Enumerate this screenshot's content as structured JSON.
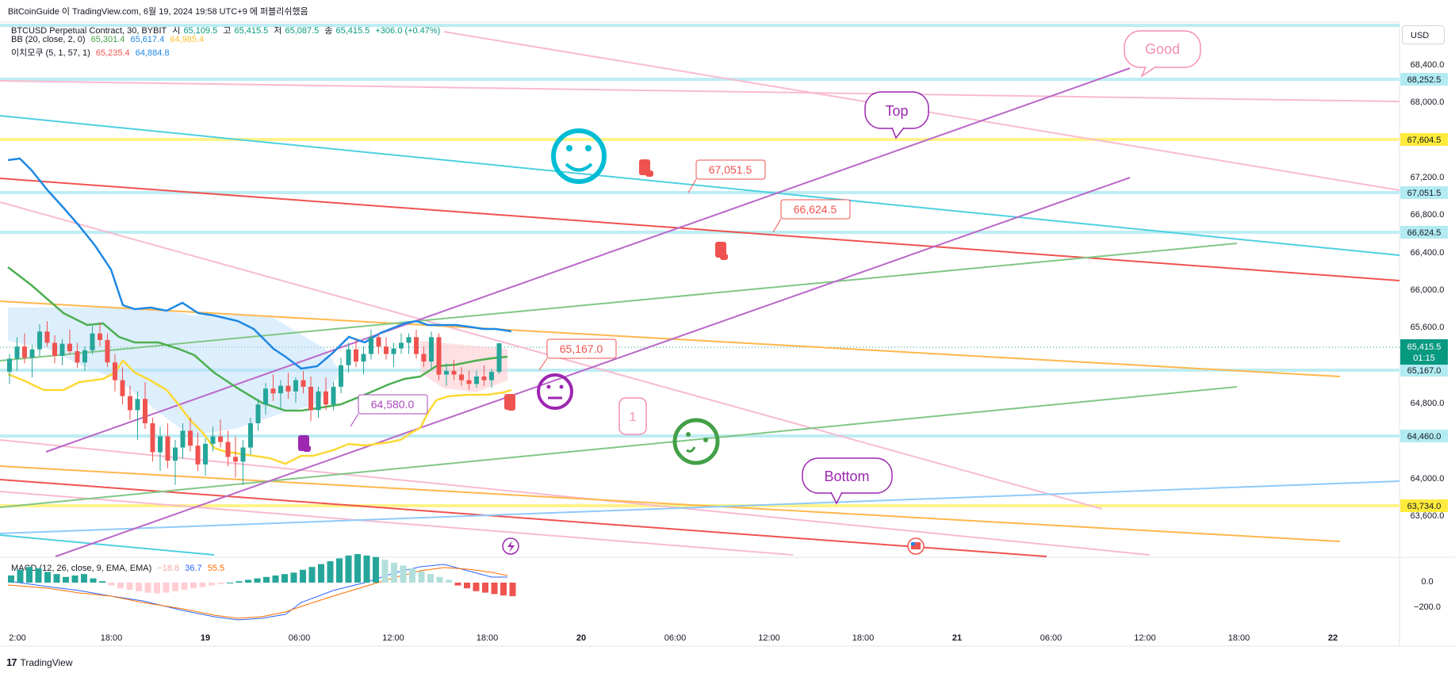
{
  "header": {
    "publisher_line": "BitCoinGuide 이 TradingView.com, 6월 19, 2024 19:58 UTC+9 에 퍼블리쉬했음"
  },
  "legend": {
    "symbol": "BTCUSD Perpetual Contract, 30, BYBIT",
    "ohlc": [
      {
        "label": "시",
        "value": "65,109.5"
      },
      {
        "label": "고",
        "value": "65,415.5"
      },
      {
        "label": "저",
        "value": "65,087.5"
      },
      {
        "label": "종",
        "value": "65,415.5"
      }
    ],
    "change": "+306.0 (+0.47%)",
    "bb": {
      "label": "BB (20, close, 2, 0)",
      "basis": "65,301.4",
      "upper": "65,617.4",
      "lower": "64,985.4"
    },
    "ichimoku": {
      "label": "이치모쿠 (5, 1, 57, 1)",
      "v1": "65,235.4",
      "v2": "64,884.8"
    },
    "macd": {
      "label": "MACD (12, 26, close, 9, EMA, EMA)",
      "hist": "−18.8",
      "macd": "36.7",
      "signal": "55.5"
    }
  },
  "currency_button": "USD",
  "price_axis": {
    "ticks": [
      "68,400.0",
      "68,000.0",
      "67,200.0",
      "66,800.0",
      "66,400.0",
      "66,000.0",
      "65,600.0",
      "64,800.0",
      "64,000.0",
      "63,600.0"
    ],
    "tags": [
      {
        "text": "68,252.5",
        "color": "#b2ebf2"
      },
      {
        "text": "67,604.5",
        "color": "#ffeb3b"
      },
      {
        "text": "67,051.5",
        "color": "#b2ebf2"
      },
      {
        "text": "66,624.5",
        "color": "#b2ebf2"
      },
      {
        "text": "65,167.0",
        "color": "#b2ebf2"
      },
      {
        "text": "64,460.0",
        "color": "#b2ebf2"
      },
      {
        "text": "63,734.0",
        "color": "#ffeb3b"
      }
    ],
    "current": {
      "price": "65,415.5",
      "countdown": "01:15",
      "color": "#089981"
    }
  },
  "macd_axis": {
    "ticks": [
      "0.0",
      "−200.0"
    ]
  },
  "time_axis": {
    "labels": [
      "2:00",
      "18:00",
      "19",
      "06:00",
      "12:00",
      "18:00",
      "20",
      "06:00",
      "12:00",
      "18:00",
      "21",
      "06:00",
      "12:00",
      "18:00",
      "22"
    ]
  },
  "annotations": {
    "price_labels": [
      "67,051.5",
      "66,624.5",
      "65,167.0",
      "64,580.0"
    ],
    "callouts": [
      "Good",
      "Top",
      "Bottom",
      "1"
    ]
  },
  "footer": {
    "logo": "17",
    "brand": "TradingView"
  },
  "chart_data": {
    "type": "candlestick",
    "symbol": "BTCUSD Perpetual Contract",
    "interval": "30",
    "ylim": [
      63400,
      68800
    ],
    "candles": [
      [
        65109,
        65300,
        64980,
        65250
      ],
      [
        65250,
        65480,
        65120,
        65380
      ],
      [
        65380,
        65520,
        65200,
        65260
      ],
      [
        65260,
        65400,
        65050,
        65350
      ],
      [
        65350,
        65620,
        65280,
        65540
      ],
      [
        65540,
        65650,
        65380,
        65420
      ],
      [
        65420,
        65500,
        65200,
        65280
      ],
      [
        65280,
        65460,
        65180,
        65410
      ],
      [
        65410,
        65560,
        65300,
        65330
      ],
      [
        65330,
        65420,
        65150,
        65210
      ],
      [
        65210,
        65380,
        65120,
        65340
      ],
      [
        65340,
        65600,
        65300,
        65520
      ],
      [
        65520,
        65640,
        65380,
        65450
      ],
      [
        65450,
        65520,
        65160,
        65210
      ],
      [
        65210,
        65300,
        64900,
        65020
      ],
      [
        65020,
        65160,
        64760,
        64850
      ],
      [
        64850,
        64960,
        64600,
        64700
      ],
      [
        64700,
        64900,
        64380,
        64820
      ],
      [
        64820,
        65000,
        64500,
        64560
      ],
      [
        64560,
        64620,
        64150,
        64250
      ],
      [
        64250,
        64520,
        64050,
        64420
      ],
      [
        64420,
        64560,
        64080,
        64160
      ],
      [
        64160,
        64380,
        63900,
        64300
      ],
      [
        64300,
        64560,
        64180,
        64480
      ],
      [
        64480,
        64620,
        64260,
        64320
      ],
      [
        64320,
        64460,
        64050,
        64120
      ],
      [
        64120,
        64400,
        64000,
        64340
      ],
      [
        64340,
        64520,
        64260,
        64420
      ],
      [
        64420,
        64600,
        64300,
        64360
      ],
      [
        64360,
        64480,
        64100,
        64200
      ],
      [
        64200,
        64420,
        63980,
        64150
      ],
      [
        64150,
        64380,
        63900,
        64300
      ],
      [
        64300,
        64620,
        64220,
        64560
      ],
      [
        64560,
        64820,
        64480,
        64760
      ],
      [
        64760,
        64990,
        64650,
        64930
      ],
      [
        64930,
        65080,
        64800,
        64880
      ],
      [
        64880,
        65020,
        64720,
        64960
      ],
      [
        64960,
        65100,
        64820,
        64900
      ],
      [
        64900,
        65050,
        64780,
        65020
      ],
      [
        65020,
        65120,
        64880,
        64950
      ],
      [
        64950,
        65060,
        64580,
        64700
      ],
      [
        64700,
        64950,
        64620,
        64900
      ],
      [
        64900,
        65050,
        64700,
        64760
      ],
      [
        64760,
        65000,
        64700,
        64950
      ],
      [
        64950,
        65260,
        64880,
        65180
      ],
      [
        65180,
        65420,
        65100,
        65350
      ],
      [
        65350,
        65460,
        65160,
        65220
      ],
      [
        65220,
        65380,
        65080,
        65300
      ],
      [
        65300,
        65560,
        65240,
        65480
      ],
      [
        65480,
        65520,
        65300,
        65380
      ],
      [
        65380,
        65480,
        65240,
        65300
      ],
      [
        65300,
        65420,
        65160,
        65360
      ],
      [
        65360,
        65520,
        65300,
        65420
      ],
      [
        65420,
        65520,
        65300,
        65480
      ],
      [
        65480,
        65560,
        65250,
        65300
      ],
      [
        65300,
        65380,
        65160,
        65220
      ],
      [
        65220,
        65540,
        65140,
        65480
      ],
      [
        65480,
        65520,
        65020,
        65080
      ],
      [
        65080,
        65200,
        64960,
        65120
      ],
      [
        65120,
        65240,
        65020,
        65080
      ],
      [
        65080,
        65160,
        64960,
        65020
      ],
      [
        65020,
        65120,
        64920,
        64980
      ],
      [
        64980,
        65120,
        64940,
        65060
      ],
      [
        65060,
        65180,
        64960,
        65020
      ],
      [
        65020,
        65140,
        64940,
        65109
      ],
      [
        65109,
        65415,
        65087,
        65415
      ]
    ],
    "horizontal_levels": [
      68252.5,
      67604.5,
      67051.5,
      66624.5,
      65167.0,
      64460.0,
      63734.0
    ],
    "macd_histogram": [
      10,
      18,
      22,
      20,
      15,
      12,
      8,
      10,
      12,
      6,
      2,
      -4,
      -8,
      -10,
      -12,
      -14,
      -15,
      -14,
      -12,
      -10,
      -8,
      -6,
      -4,
      -2,
      0,
      2,
      4,
      6,
      8,
      10,
      12,
      14,
      18,
      22,
      26,
      30,
      34,
      38,
      40,
      38,
      36,
      32,
      28,
      24,
      20,
      16,
      12,
      8,
      4,
      -4,
      -8,
      -12,
      -14,
      -16,
      -18,
      -19
    ]
  }
}
